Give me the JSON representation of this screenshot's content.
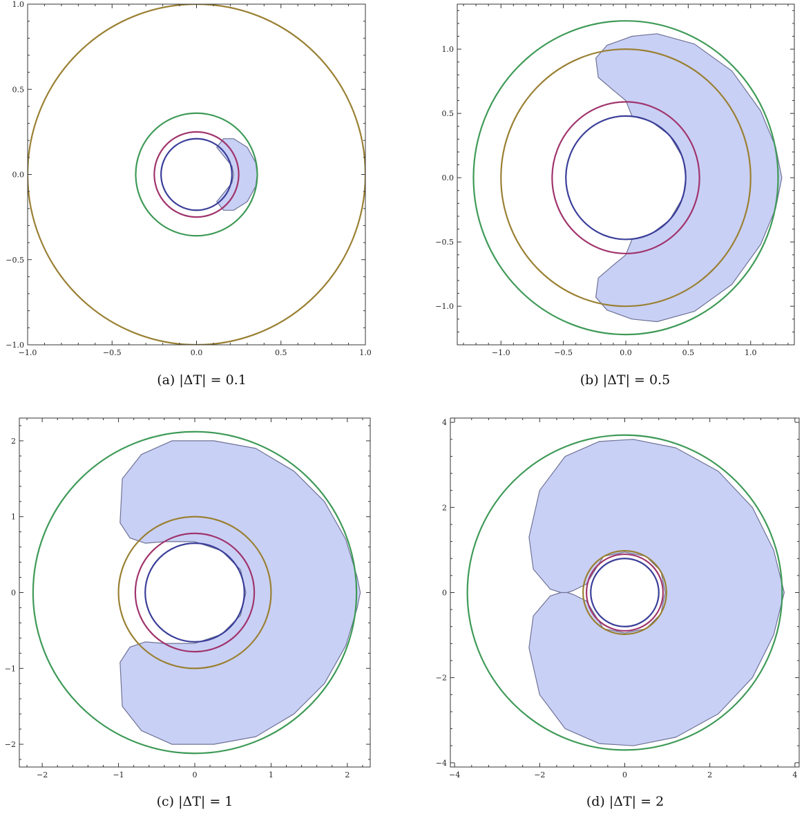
{
  "colors": {
    "blue": "#3a3e99",
    "magenta": "#a0346c",
    "green": "#3e9a57",
    "olive": "#9a8033",
    "region_fill": "#c9d0f5",
    "region_stroke": "#6e7296"
  },
  "chart_data": [
    {
      "type": "contour",
      "caption": "(a) |ΔT| = 0.1",
      "xlim": [
        -1.0,
        1.0
      ],
      "ylim": [
        -1.0,
        1.0
      ],
      "xticks": [
        -1.0,
        -0.5,
        0.0,
        0.5,
        1.0
      ],
      "xtick_labels": [
        "−1.0",
        "−0.5",
        "0.0",
        "0.5",
        "1.0"
      ],
      "yticks": [
        -1.0,
        -0.5,
        0.0,
        0.5,
        1.0
      ],
      "ytick_labels": [
        "−1.0",
        "−0.5",
        "0.0",
        "0.5",
        "1.0"
      ],
      "circles": [
        {
          "color": "olive",
          "r": 1.0
        },
        {
          "color": "green",
          "r": 0.36
        },
        {
          "color": "magenta",
          "r": 0.25
        },
        {
          "color": "blue",
          "r": 0.21
        }
      ],
      "region": [
        [
          0.12,
          0.16
        ],
        [
          0.16,
          0.21
        ],
        [
          0.22,
          0.21
        ],
        [
          0.3,
          0.16
        ],
        [
          0.35,
          0.07
        ],
        [
          0.36,
          0.0
        ],
        [
          0.35,
          -0.07
        ],
        [
          0.3,
          -0.16
        ],
        [
          0.22,
          -0.21
        ],
        [
          0.16,
          -0.21
        ],
        [
          0.12,
          -0.16
        ],
        [
          0.16,
          -0.11
        ],
        [
          0.21,
          -0.05
        ],
        [
          0.22,
          0.0
        ],
        [
          0.21,
          0.05
        ],
        [
          0.16,
          0.11
        ]
      ]
    },
    {
      "type": "contour",
      "caption": "(b) |ΔT| = 0.5",
      "xlim": [
        -1.35,
        1.35
      ],
      "ylim": [
        -1.3,
        1.35
      ],
      "xticks": [
        -1.0,
        -0.5,
        0.0,
        0.5,
        1.0
      ],
      "xtick_labels": [
        "−1.0",
        "−0.5",
        "0.0",
        "0.5",
        "1.0"
      ],
      "yticks": [
        -1.0,
        -0.5,
        0.0,
        0.5,
        1.0
      ],
      "ytick_labels": [
        "−1.0",
        "−0.5",
        "0.0",
        "0.5",
        "1.0"
      ],
      "circles": [
        {
          "color": "green",
          "r": 1.22
        },
        {
          "color": "olive",
          "r": 1.0
        },
        {
          "color": "magenta",
          "r": 0.59
        },
        {
          "color": "blue",
          "r": 0.48
        }
      ],
      "region": [
        [
          -0.22,
          0.78
        ],
        [
          -0.24,
          0.93
        ],
        [
          -0.15,
          1.03
        ],
        [
          0.05,
          1.1
        ],
        [
          0.25,
          1.12
        ],
        [
          0.55,
          1.04
        ],
        [
          0.85,
          0.83
        ],
        [
          1.08,
          0.52
        ],
        [
          1.2,
          0.24
        ],
        [
          1.25,
          0.0
        ],
        [
          1.2,
          -0.24
        ],
        [
          1.08,
          -0.52
        ],
        [
          0.85,
          -0.83
        ],
        [
          0.55,
          -1.04
        ],
        [
          0.25,
          -1.12
        ],
        [
          0.05,
          -1.1
        ],
        [
          -0.15,
          -1.03
        ],
        [
          -0.24,
          -0.93
        ],
        [
          -0.22,
          -0.78
        ],
        [
          -0.1,
          -0.68
        ],
        [
          0.0,
          -0.6
        ],
        [
          0.05,
          -0.48
        ],
        [
          0.2,
          -0.44
        ],
        [
          0.35,
          -0.33
        ],
        [
          0.46,
          -0.15
        ],
        [
          0.48,
          0.0
        ],
        [
          0.46,
          0.15
        ],
        [
          0.35,
          0.33
        ],
        [
          0.2,
          0.44
        ],
        [
          0.05,
          0.48
        ],
        [
          0.0,
          0.6
        ],
        [
          -0.1,
          0.68
        ]
      ]
    },
    {
      "type": "contour",
      "caption": "(c) |ΔT| = 1",
      "xlim": [
        -2.3,
        2.3
      ],
      "ylim": [
        -2.3,
        2.3
      ],
      "xticks": [
        -2,
        -1,
        0,
        1,
        2
      ],
      "xtick_labels": [
        "−2",
        "−1",
        "0",
        "1",
        "2"
      ],
      "yticks": [
        -2,
        -1,
        0,
        1,
        2
      ],
      "ytick_labels": [
        "−2",
        "−1",
        "0",
        "1",
        "2"
      ],
      "circles": [
        {
          "color": "green",
          "r": 2.12
        },
        {
          "color": "olive",
          "r": 1.0
        },
        {
          "color": "magenta",
          "r": 0.78
        },
        {
          "color": "blue",
          "r": 0.65
        }
      ],
      "region": [
        [
          -0.65,
          0.65
        ],
        [
          -0.85,
          0.72
        ],
        [
          -0.98,
          0.92
        ],
        [
          -0.95,
          1.5
        ],
        [
          -0.7,
          1.82
        ],
        [
          -0.3,
          2.0
        ],
        [
          0.25,
          2.0
        ],
        [
          0.8,
          1.9
        ],
        [
          1.3,
          1.6
        ],
        [
          1.7,
          1.2
        ],
        [
          1.98,
          0.7
        ],
        [
          2.13,
          0.2
        ],
        [
          2.17,
          0.0
        ],
        [
          2.13,
          -0.2
        ],
        [
          1.98,
          -0.7
        ],
        [
          1.7,
          -1.2
        ],
        [
          1.3,
          -1.6
        ],
        [
          0.8,
          -1.9
        ],
        [
          0.25,
          -2.0
        ],
        [
          -0.3,
          -2.0
        ],
        [
          -0.7,
          -1.82
        ],
        [
          -0.95,
          -1.5
        ],
        [
          -0.98,
          -0.92
        ],
        [
          -0.85,
          -0.72
        ],
        [
          -0.65,
          -0.65
        ],
        [
          -0.4,
          -0.67
        ],
        [
          0.0,
          -0.67
        ],
        [
          0.35,
          -0.55
        ],
        [
          0.6,
          -0.3
        ],
        [
          0.67,
          0.0
        ],
        [
          0.6,
          0.3
        ],
        [
          0.35,
          0.55
        ],
        [
          0.0,
          0.67
        ],
        [
          -0.4,
          0.67
        ]
      ]
    },
    {
      "type": "contour",
      "caption": "(d) |ΔT| = 2",
      "xlim": [
        -4.1,
        4.1
      ],
      "ylim": [
        -4.1,
        4.1
      ],
      "xticks": [
        -4,
        -2,
        0,
        2,
        4
      ],
      "xtick_labels": [
        "−4",
        "−2",
        "0",
        "2",
        "4"
      ],
      "yticks": [
        -4,
        -2,
        0,
        2,
        4
      ],
      "ytick_labels": [
        "−4",
        "−2",
        "0",
        "2",
        "4"
      ],
      "circles": [
        {
          "color": "green",
          "r": 3.7
        },
        {
          "color": "olive",
          "r": 0.98
        },
        {
          "color": "magenta",
          "r": 0.9
        },
        {
          "color": "blue",
          "r": 0.8
        }
      ],
      "region": [
        [
          -1.5,
          0.0
        ],
        [
          -1.75,
          0.08
        ],
        [
          -2.15,
          0.55
        ],
        [
          -2.25,
          1.3
        ],
        [
          -2.0,
          2.4
        ],
        [
          -1.4,
          3.2
        ],
        [
          -0.6,
          3.55
        ],
        [
          0.2,
          3.6
        ],
        [
          1.2,
          3.4
        ],
        [
          2.2,
          2.85
        ],
        [
          3.0,
          2.0
        ],
        [
          3.5,
          1.0
        ],
        [
          3.75,
          0.0
        ],
        [
          3.5,
          -1.0
        ],
        [
          3.0,
          -2.0
        ],
        [
          2.2,
          -2.85
        ],
        [
          1.2,
          -3.4
        ],
        [
          0.2,
          -3.6
        ],
        [
          -0.6,
          -3.55
        ],
        [
          -1.4,
          -3.2
        ],
        [
          -2.0,
          -2.4
        ],
        [
          -2.25,
          -1.3
        ],
        [
          -2.15,
          -0.55
        ],
        [
          -1.75,
          -0.08
        ],
        [
          -1.5,
          0.0
        ],
        [
          -1.35,
          0.0
        ],
        [
          -1.2,
          -0.05
        ],
        [
          -0.9,
          -0.2
        ],
        [
          -0.5,
          -0.85
        ],
        [
          0.0,
          -0.95
        ],
        [
          0.5,
          -0.85
        ],
        [
          0.85,
          -0.5
        ],
        [
          0.95,
          0.0
        ],
        [
          0.85,
          0.5
        ],
        [
          0.5,
          0.85
        ],
        [
          0.0,
          0.95
        ],
        [
          -0.5,
          0.85
        ],
        [
          -0.9,
          0.2
        ],
        [
          -1.2,
          0.05
        ],
        [
          -1.35,
          0.0
        ]
      ]
    }
  ]
}
